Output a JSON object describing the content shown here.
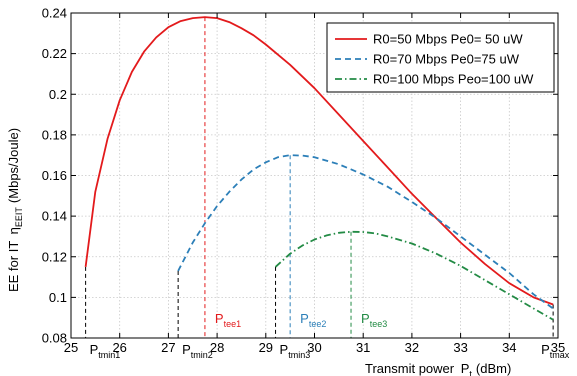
{
  "chart_data": {
    "type": "line",
    "title": "",
    "xlabel": "Transmit power",
    "xlabel_symbol": "P",
    "xlabel_sub": "t",
    "xlabel_unit": "(dBm)",
    "ylabel": "EE for IT",
    "ylabel_symbol": "η",
    "ylabel_sub": "EEIT",
    "ylabel_unit": "(Mbps/Joule)",
    "xlim": [
      25,
      35
    ],
    "ylim": [
      0.08,
      0.24
    ],
    "grid": true,
    "legend_position": "top-right",
    "x_ticks": [
      "25",
      "26",
      "27",
      "28",
      "29",
      "30",
      "31",
      "32",
      "33",
      "34",
      "35"
    ],
    "y_ticks": [
      "0.08",
      "0.1",
      "0.12",
      "0.14",
      "0.16",
      "0.18",
      "0.2",
      "0.22",
      "0.24"
    ],
    "series": [
      {
        "name": "R0=50 Mbps Pe0= 50 uW",
        "color": "#e31a1c",
        "style": "solid",
        "x": [
          25.3,
          25.5,
          25.75,
          26.0,
          26.25,
          26.5,
          26.75,
          27.0,
          27.25,
          27.5,
          27.75,
          28.0,
          28.25,
          28.5,
          28.75,
          29.0,
          29.5,
          30.0,
          30.5,
          31.0,
          31.5,
          32.0,
          32.5,
          33.0,
          33.5,
          34.0,
          34.5,
          34.9
        ],
        "y": [
          0.115,
          0.152,
          0.178,
          0.197,
          0.211,
          0.221,
          0.228,
          0.233,
          0.236,
          0.2375,
          0.238,
          0.2375,
          0.2355,
          0.2325,
          0.229,
          0.2245,
          0.2145,
          0.203,
          0.19,
          0.177,
          0.164,
          0.151,
          0.139,
          0.127,
          0.1165,
          0.107,
          0.1,
          0.0965
        ]
      },
      {
        "name": "R0=70 Mbps Pe0=75 uW",
        "color": "#2c7fb8",
        "style": "dashed",
        "x": [
          27.2,
          27.5,
          27.75,
          28.0,
          28.25,
          28.5,
          28.75,
          29.0,
          29.25,
          29.5,
          29.75,
          30.0,
          30.5,
          31.0,
          31.5,
          32.0,
          32.5,
          33.0,
          33.5,
          34.0,
          34.5,
          34.9
        ],
        "y": [
          0.113,
          0.127,
          0.1365,
          0.145,
          0.152,
          0.158,
          0.163,
          0.1665,
          0.169,
          0.17,
          0.1698,
          0.169,
          0.1655,
          0.1605,
          0.1545,
          0.147,
          0.139,
          0.13,
          0.121,
          0.112,
          0.1015,
          0.0945
        ]
      },
      {
        "name": "R0=100 Mbps Peo=100 uW",
        "color": "#238b45",
        "style": "dashdot",
        "x": [
          29.2,
          29.5,
          29.75,
          30.0,
          30.25,
          30.5,
          30.75,
          31.0,
          31.25,
          31.5,
          32.0,
          32.5,
          33.0,
          33.5,
          34.0,
          34.5,
          34.9
        ],
        "y": [
          0.115,
          0.1215,
          0.1255,
          0.1285,
          0.1305,
          0.1318,
          0.1323,
          0.1322,
          0.1315,
          0.13,
          0.1265,
          0.1215,
          0.1155,
          0.1085,
          0.1015,
          0.0945,
          0.089
        ]
      }
    ],
    "vertical_markers": [
      {
        "x": 25.3,
        "y": 0.115,
        "color": "#000000",
        "label": "P",
        "label_sub": "tmin1"
      },
      {
        "x": 27.2,
        "y": 0.113,
        "color": "#000000",
        "label": "P",
        "label_sub": "tmin2"
      },
      {
        "x": 29.2,
        "y": 0.115,
        "color": "#000000",
        "label": "P",
        "label_sub": "tmin3"
      },
      {
        "x": 34.9,
        "y": 0.0965,
        "color": "#000000",
        "label": "P",
        "label_sub": "tmax"
      },
      {
        "x": 27.75,
        "y": 0.238,
        "color": "#e31a1c",
        "label": "P",
        "label_sub": "tee1"
      },
      {
        "x": 29.5,
        "y": 0.17,
        "color": "#2c7fb8",
        "label": "P",
        "label_sub": "tee2"
      },
      {
        "x": 30.75,
        "y": 0.1323,
        "color": "#238b45",
        "label": "P",
        "label_sub": "tee3"
      }
    ]
  }
}
